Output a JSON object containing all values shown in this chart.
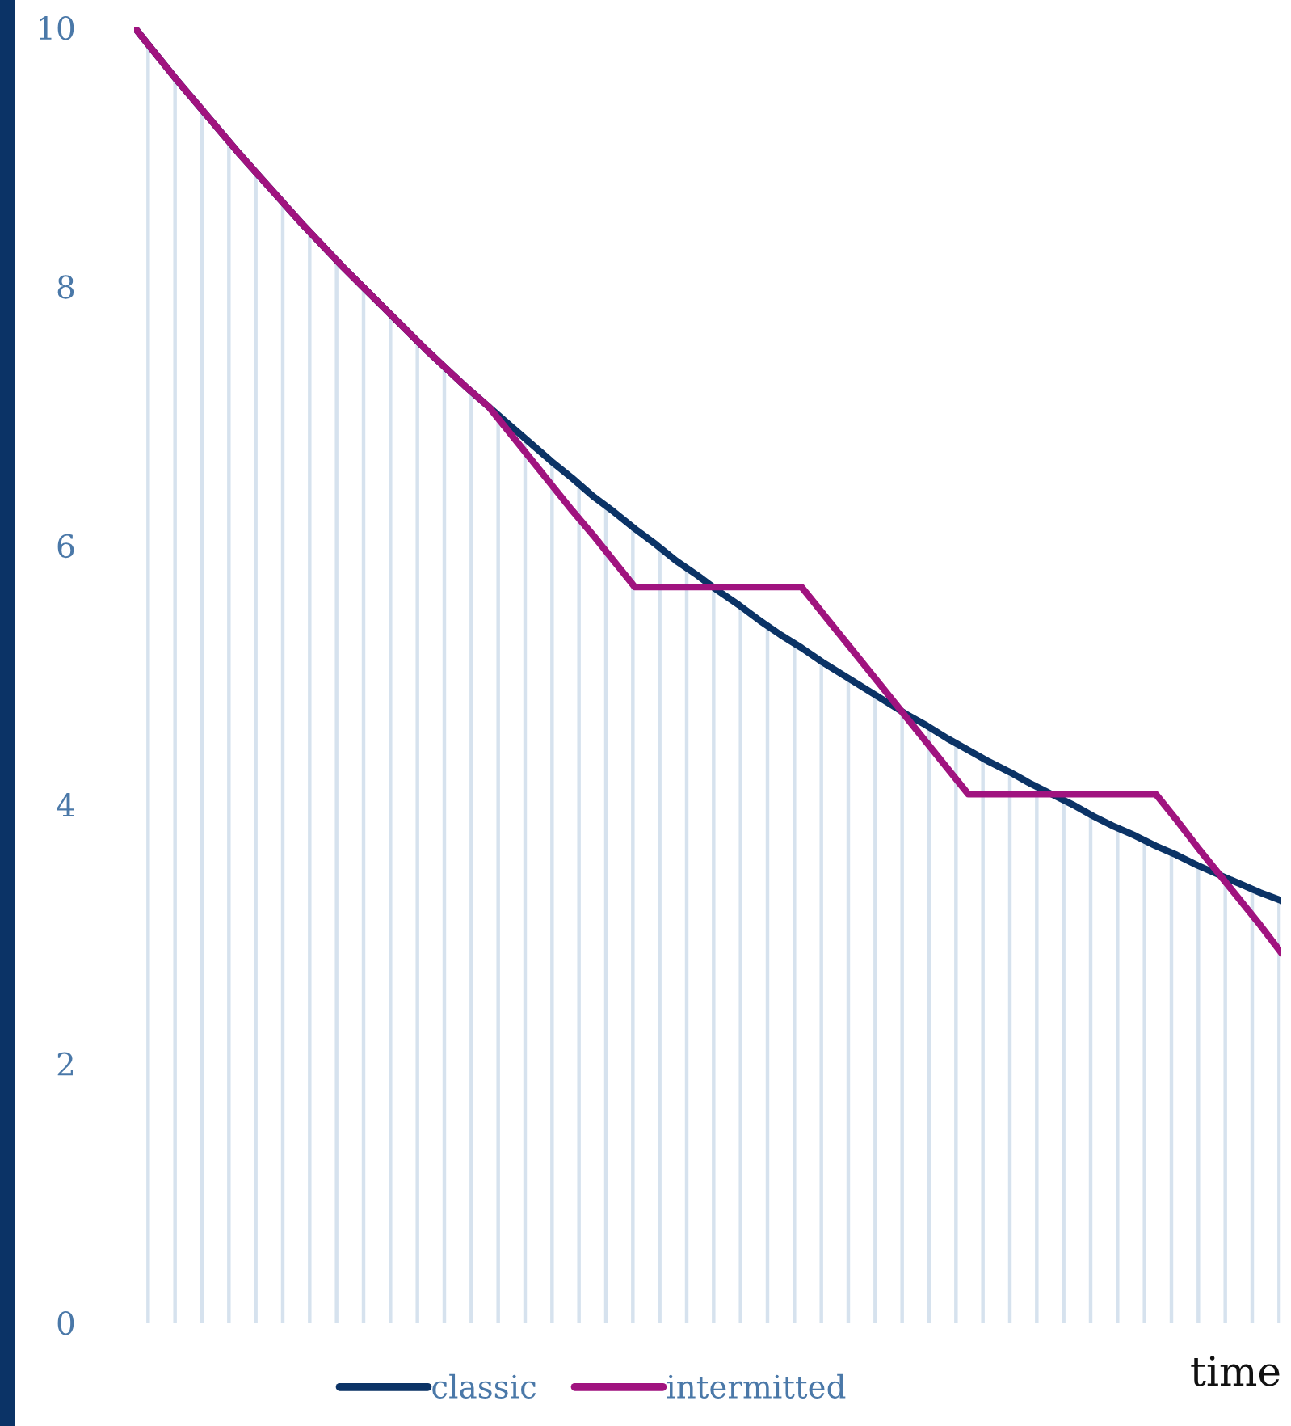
{
  "chart_data": {
    "type": "line",
    "xlabel": "time",
    "categories": [
      null,
      null,
      null,
      null,
      null,
      null,
      null,
      null,
      null,
      null,
      null,
      null,
      null,
      null,
      null,
      null,
      null,
      null,
      null,
      null,
      null,
      null,
      null,
      null,
      null,
      null,
      null,
      null,
      null,
      null,
      null,
      null,
      null,
      null,
      null,
      null,
      null,
      null,
      null,
      null,
      null,
      null,
      null,
      null,
      null,
      null,
      null,
      null,
      null,
      null,
      null,
      null,
      null,
      null,
      null,
      null
    ],
    "ylim": [
      0,
      10
    ],
    "yticks": [
      0,
      2,
      4,
      6,
      8,
      10
    ],
    "tick_labels": "y",
    "legend": "bottom",
    "marker": "none",
    "line_style": "solid",
    "series": [
      {
        "type": "area",
        "name": "classic",
        "color": "#0b3366",
        "values": [
          10.0,
          9.8,
          9.6,
          9.41,
          9.22,
          9.03,
          8.85,
          8.67,
          8.49,
          8.32,
          8.15,
          7.99,
          7.83,
          7.67,
          7.51,
          7.36,
          7.21,
          7.07,
          6.93,
          6.79,
          6.65,
          6.52,
          6.38,
          6.26,
          6.13,
          6.01,
          5.88,
          5.77,
          5.65,
          5.54,
          5.42,
          5.31,
          5.21,
          5.1,
          5.0,
          4.9,
          4.8,
          4.7,
          4.61,
          4.51,
          4.42,
          4.33,
          4.25,
          4.16,
          4.08,
          4.0,
          3.91,
          3.83,
          3.76,
          3.68,
          3.61,
          3.53,
          3.46,
          3.39,
          3.32,
          3.26
        ]
      },
      {
        "name": "intermitted",
        "color": "#a0137f",
        "values": [
          10.0,
          9.8,
          9.6,
          9.41,
          9.22,
          9.03,
          8.85,
          8.67,
          8.49,
          8.32,
          8.15,
          7.99,
          7.83,
          7.67,
          7.51,
          7.36,
          7.21,
          7.07,
          6.87,
          6.67,
          6.47,
          6.27,
          6.08,
          5.88,
          5.68,
          5.68,
          5.68,
          5.68,
          5.68,
          5.68,
          5.68,
          5.68,
          5.68,
          5.48,
          5.28,
          5.08,
          4.88,
          4.68,
          4.48,
          4.28,
          4.08,
          4.08,
          4.08,
          4.08,
          4.08,
          4.08,
          4.08,
          4.08,
          4.08,
          4.08,
          3.88,
          3.67,
          3.47,
          3.27,
          3.07,
          2.86
        ]
      }
    ]
  }
}
